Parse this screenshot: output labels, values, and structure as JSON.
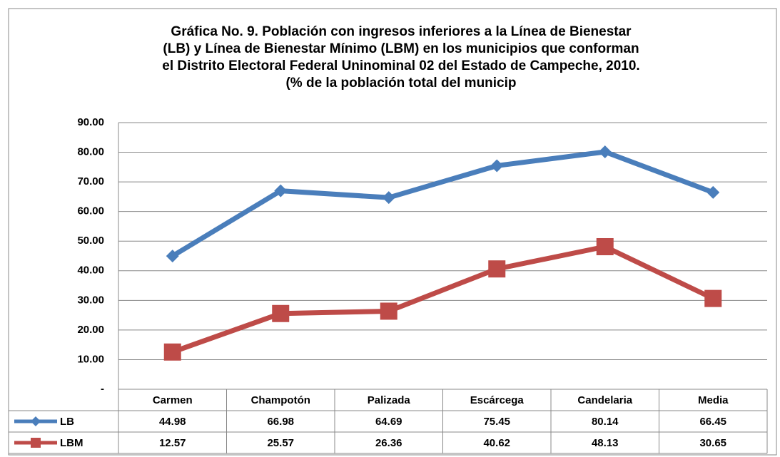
{
  "chart_data": {
    "type": "line",
    "title": [
      "Gráfica No.  9. Población con ingresos inferiores a la Línea de Bienestar",
      "(LB) y Línea de Bienestar Mínimo (LBM) en los municipios que conforman",
      "el Distrito Electoral Federal Uninominal 02 del Estado de Campeche, 2010.",
      "(% de la población total del municip"
    ],
    "categories": [
      "Carmen",
      "Champotón",
      "Palizada",
      "Escárcega",
      "Candelaria",
      "Media"
    ],
    "series": [
      {
        "name": "LB",
        "color": "#4a7ebb",
        "marker": "diamond",
        "values": [
          44.98,
          66.98,
          64.69,
          75.45,
          80.14,
          66.45
        ]
      },
      {
        "name": "LBM",
        "color": "#be4b48",
        "marker": "square",
        "values": [
          12.57,
          25.57,
          26.36,
          40.62,
          48.13,
          30.65
        ]
      }
    ],
    "ylim": [
      0,
      90
    ],
    "yticks": [
      {
        "value": 0,
        "label": "-"
      },
      {
        "value": 10,
        "label": "10.00"
      },
      {
        "value": 20,
        "label": "20.00"
      },
      {
        "value": 30,
        "label": "30.00"
      },
      {
        "value": 40,
        "label": "40.00"
      },
      {
        "value": 50,
        "label": "50.00"
      },
      {
        "value": 60,
        "label": "60.00"
      },
      {
        "value": 70,
        "label": "70.00"
      },
      {
        "value": 80,
        "label": "80.00"
      },
      {
        "value": 90,
        "label": "90.00"
      }
    ],
    "grid": true,
    "data_table": true
  }
}
